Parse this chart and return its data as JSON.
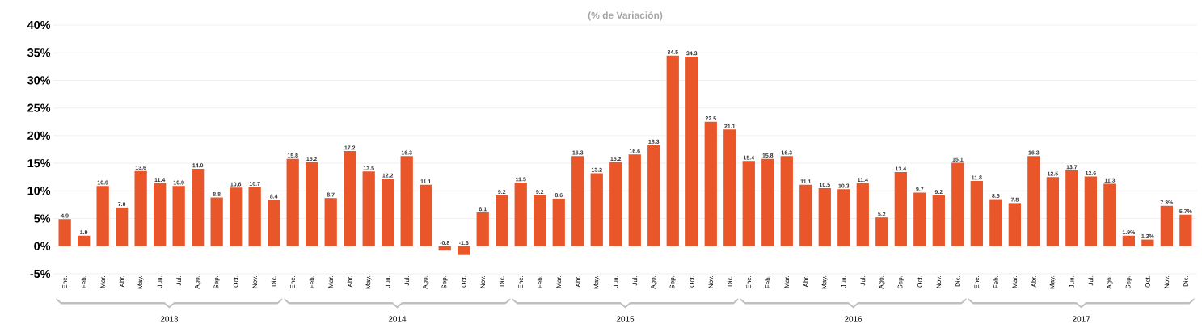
{
  "chart_data": {
    "type": "bar",
    "title": "(% de Variación)",
    "categories": [
      "Ene.",
      "Feb.",
      "Mar.",
      "Abr.",
      "May.",
      "Jun.",
      "Jul.",
      "Ago.",
      "Sep.",
      "Oct.",
      "Nov.",
      "Dic.",
      "Ene.",
      "Feb.",
      "Mar.",
      "Abr.",
      "May.",
      "Jun.",
      "Jul.",
      "Ago.",
      "Sep.",
      "Oct.",
      "Nov.",
      "Dic.",
      "Ene.",
      "Feb.",
      "Mar.",
      "Abr.",
      "May.",
      "Jun.",
      "Jul.",
      "Ago.",
      "Sep.",
      "Oct.",
      "Nov.",
      "Dic.",
      "Ene.",
      "Feb.",
      "Mar.",
      "Abr.",
      "May.",
      "Jun.",
      "Jul.",
      "Ago.",
      "Sep.",
      "Oct.",
      "Nov.",
      "Dic.",
      "Ene.",
      "Feb.",
      "Mar.",
      "Abr.",
      "May.",
      "Jun.",
      "Jul.",
      "Ago.",
      "Sep.",
      "Oct.",
      "Nov.",
      "Dic."
    ],
    "values": [
      4.9,
      1.9,
      10.9,
      7.0,
      13.6,
      11.4,
      10.9,
      14.0,
      8.8,
      10.6,
      10.7,
      8.4,
      15.8,
      15.2,
      8.7,
      17.2,
      13.5,
      12.2,
      16.3,
      11.1,
      -0.8,
      -1.6,
      6.1,
      9.2,
      11.5,
      9.2,
      8.6,
      16.3,
      13.2,
      15.2,
      16.6,
      18.3,
      34.5,
      34.3,
      22.5,
      21.1,
      15.4,
      15.8,
      16.3,
      11.1,
      10.5,
      10.3,
      11.4,
      5.2,
      13.4,
      9.7,
      9.2,
      15.1,
      11.8,
      8.5,
      7.8,
      16.3,
      12.5,
      13.7,
      12.6,
      11.3,
      1.9,
      1.2,
      7.3,
      5.7
    ],
    "value_labels": [
      "4.9",
      "1.9",
      "10.9",
      "7.0",
      "13.6",
      "11.4",
      "10.9",
      "14.0",
      "8.8",
      "10.6",
      "10.7",
      "8.4",
      "15.8",
      "15.2",
      "8.7",
      "17.2",
      "13.5",
      "12.2",
      "16.3",
      "11.1",
      "-0.8",
      "-1.6",
      "6.1",
      "9.2",
      "11.5",
      "9.2",
      "8.6",
      "16.3",
      "13.2",
      "15.2",
      "16.6",
      "18.3",
      "34.5",
      "34.3",
      "22.5",
      "21.1",
      "15.4",
      "15.8",
      "16.3",
      "11.1",
      "10.5",
      "10.3",
      "11.4",
      "5.2",
      "13.4",
      "9.7",
      "9.2",
      "15.1",
      "11.8",
      "8.5",
      "7.8",
      "16.3",
      "12.5",
      "13.7",
      "12.6",
      "11.3",
      "1.9%",
      "1.2%",
      "7.3%",
      "5.7%"
    ],
    "color": "#e8562a",
    "ylim": [
      -5,
      40
    ],
    "yticks": [
      {
        "value": -5,
        "label": "-5%"
      },
      {
        "value": 0,
        "label": "0%"
      },
      {
        "value": 5,
        "label": "5%"
      },
      {
        "value": 10,
        "label": "10%"
      },
      {
        "value": 15,
        "label": "15%"
      },
      {
        "value": 20,
        "label": "20%"
      },
      {
        "value": 25,
        "label": "25%"
      },
      {
        "value": 30,
        "label": "30%"
      },
      {
        "value": 35,
        "label": "35%"
      },
      {
        "value": 40,
        "label": "40%"
      }
    ],
    "grid": "y",
    "annotations": [
      "2013",
      "2014",
      "2015",
      "2016",
      "2017"
    ]
  }
}
